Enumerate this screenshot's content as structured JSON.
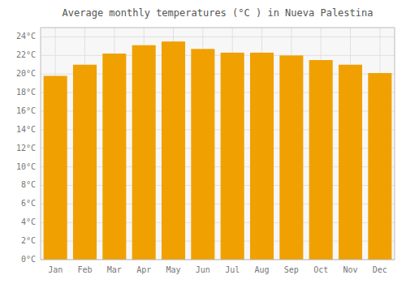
{
  "chart_data": {
    "type": "bar",
    "title": "Average monthly temperatures (°C ) in Nueva Palestina",
    "categories": [
      "Jan",
      "Feb",
      "Mar",
      "Apr",
      "May",
      "Jun",
      "Jul",
      "Aug",
      "Sep",
      "Oct",
      "Nov",
      "Dec"
    ],
    "values": [
      19.8,
      21.0,
      22.2,
      23.1,
      23.5,
      22.7,
      22.3,
      22.3,
      22.0,
      21.5,
      21.0,
      20.1
    ],
    "color": "#F0A000",
    "ylim": [
      0,
      25
    ],
    "yticks": [
      {
        "value": 0,
        "label": "0°C"
      },
      {
        "value": 2,
        "label": "2°C"
      },
      {
        "value": 4,
        "label": "4°C"
      },
      {
        "value": 6,
        "label": "6°C"
      },
      {
        "value": 8,
        "label": "8°C"
      },
      {
        "value": 10,
        "label": "10°C"
      },
      {
        "value": 12,
        "label": "12°C"
      },
      {
        "value": 14,
        "label": "14°C"
      },
      {
        "value": 16,
        "label": "16°C"
      },
      {
        "value": 18,
        "label": "18°C"
      },
      {
        "value": 20,
        "label": "20°C"
      },
      {
        "value": 22,
        "label": "22°C"
      },
      {
        "value": 24,
        "label": "24°C"
      }
    ],
    "grid": true
  }
}
